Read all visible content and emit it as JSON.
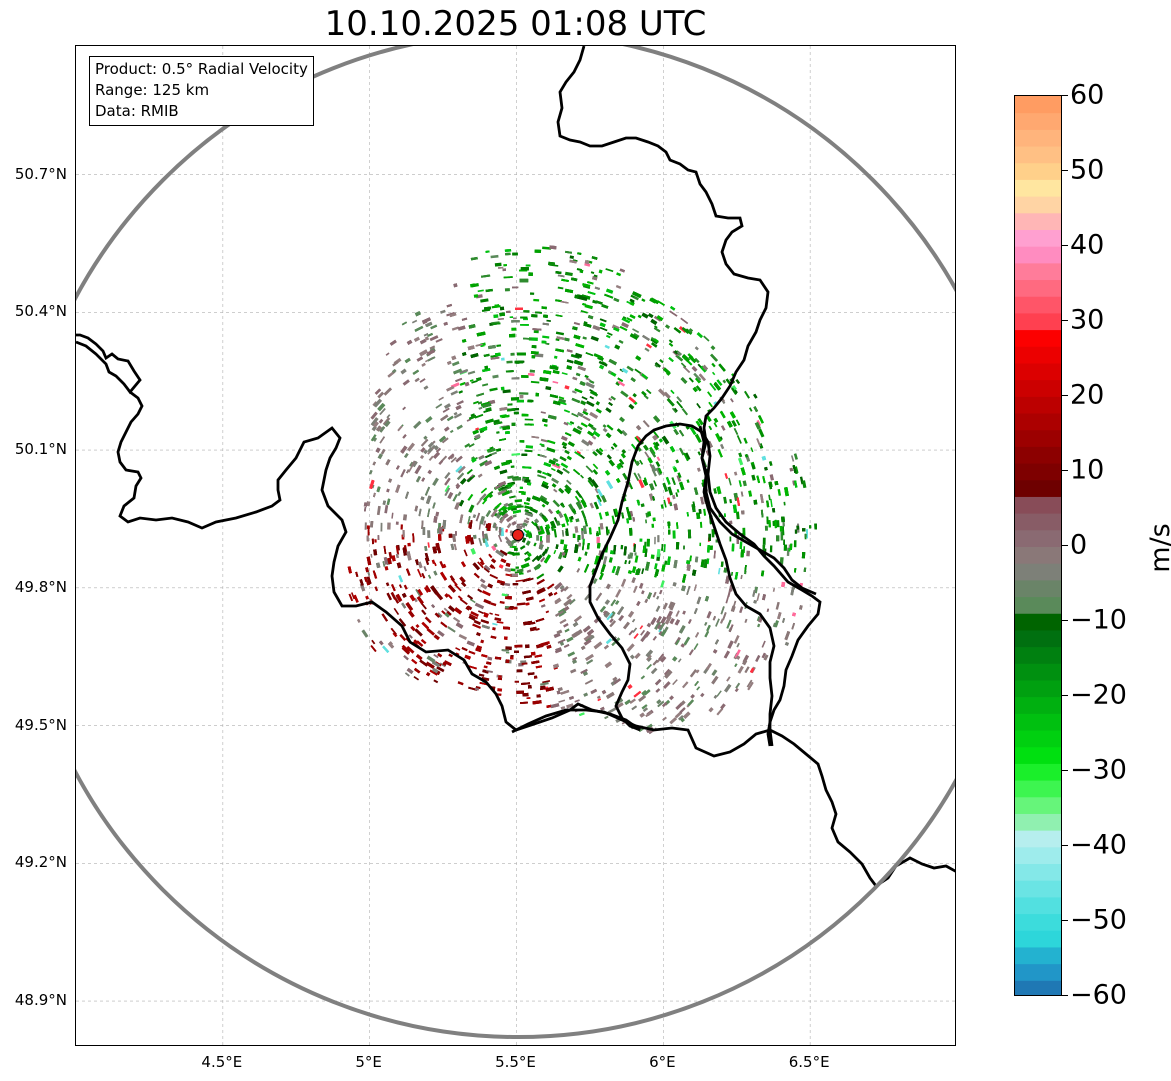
{
  "title": "10.10.2025 01:08 UTC",
  "info_box": {
    "product": "Product: 0.5° Radial Velocity",
    "range": "Range: 125 km",
    "data": "Data: RMIB"
  },
  "map": {
    "lon_range": [
      4.0,
      7.0
    ],
    "lat_range": [
      48.8,
      50.98
    ],
    "radar_site": {
      "lon": 5.505,
      "lat": 49.915
    },
    "range_km": 125,
    "y_ticks": [
      {
        "lat": 50.7,
        "label": "50.7°N"
      },
      {
        "lat": 50.4,
        "label": "50.4°N"
      },
      {
        "lat": 50.1,
        "label": "50.1°N"
      },
      {
        "lat": 49.8,
        "label": "49.8°N"
      },
      {
        "lat": 49.5,
        "label": "49.5°N"
      },
      {
        "lat": 49.2,
        "label": "49.2°N"
      },
      {
        "lat": 48.9,
        "label": "48.9°N"
      }
    ],
    "x_ticks": [
      {
        "lon": 4.5,
        "label": "4.5°E"
      },
      {
        "lon": 5.0,
        "label": "5°E"
      },
      {
        "lon": 5.5,
        "label": "5.5°E"
      },
      {
        "lon": 6.0,
        "label": "6°E"
      },
      {
        "lon": 6.5,
        "label": "6.5°E"
      }
    ],
    "colors": {
      "ring": "#808080",
      "grid": "#b0b0b0",
      "border": "#000000",
      "site": "#e8201a"
    }
  },
  "colorbar": {
    "unit": "m/s",
    "min": -60,
    "max": 60,
    "ticks": [
      {
        "value": 60,
        "label": "60"
      },
      {
        "value": 50,
        "label": "50"
      },
      {
        "value": 40,
        "label": "40"
      },
      {
        "value": 30,
        "label": "30"
      },
      {
        "value": 20,
        "label": "20"
      },
      {
        "value": 10,
        "label": "10"
      },
      {
        "value": 0,
        "label": "0"
      },
      {
        "value": -10,
        "label": "−10"
      },
      {
        "value": -20,
        "label": "−20"
      },
      {
        "value": -30,
        "label": "−30"
      },
      {
        "value": -40,
        "label": "−40"
      },
      {
        "value": -50,
        "label": "−50"
      },
      {
        "value": -60,
        "label": "−60"
      }
    ],
    "bands": [
      "#1f78b4",
      "#2196c8",
      "#23b2d0",
      "#2dd6da",
      "#3cdcdc",
      "#52e0e0",
      "#6ae4e4",
      "#84e8e8",
      "#9eecec",
      "#b6eeee",
      "#90f0b0",
      "#66f57a",
      "#3df550",
      "#1aef2a",
      "#00e010",
      "#00d010",
      "#00c010",
      "#00b010",
      "#00a010",
      "#009010",
      "#008010",
      "#007010",
      "#006400",
      "#5a8a5a",
      "#6a8468",
      "#7d8078",
      "#8a7878",
      "#8a6a72",
      "#885c66",
      "#884c58",
      "#6e0000",
      "#7e0000",
      "#8c0000",
      "#9c0000",
      "#ac0000",
      "#bc0000",
      "#cc0000",
      "#dc0000",
      "#ec0000",
      "#fc0000",
      "#ff4050",
      "#ff5568",
      "#ff6a80",
      "#ff7c9a",
      "#ff8cc0",
      "#ffa0d0",
      "#ffb6b6",
      "#ffd4a4",
      "#ffe6a0",
      "#ffd08a",
      "#ffc084",
      "#ffb47c",
      "#ffa870",
      "#ff9c62"
    ]
  }
}
